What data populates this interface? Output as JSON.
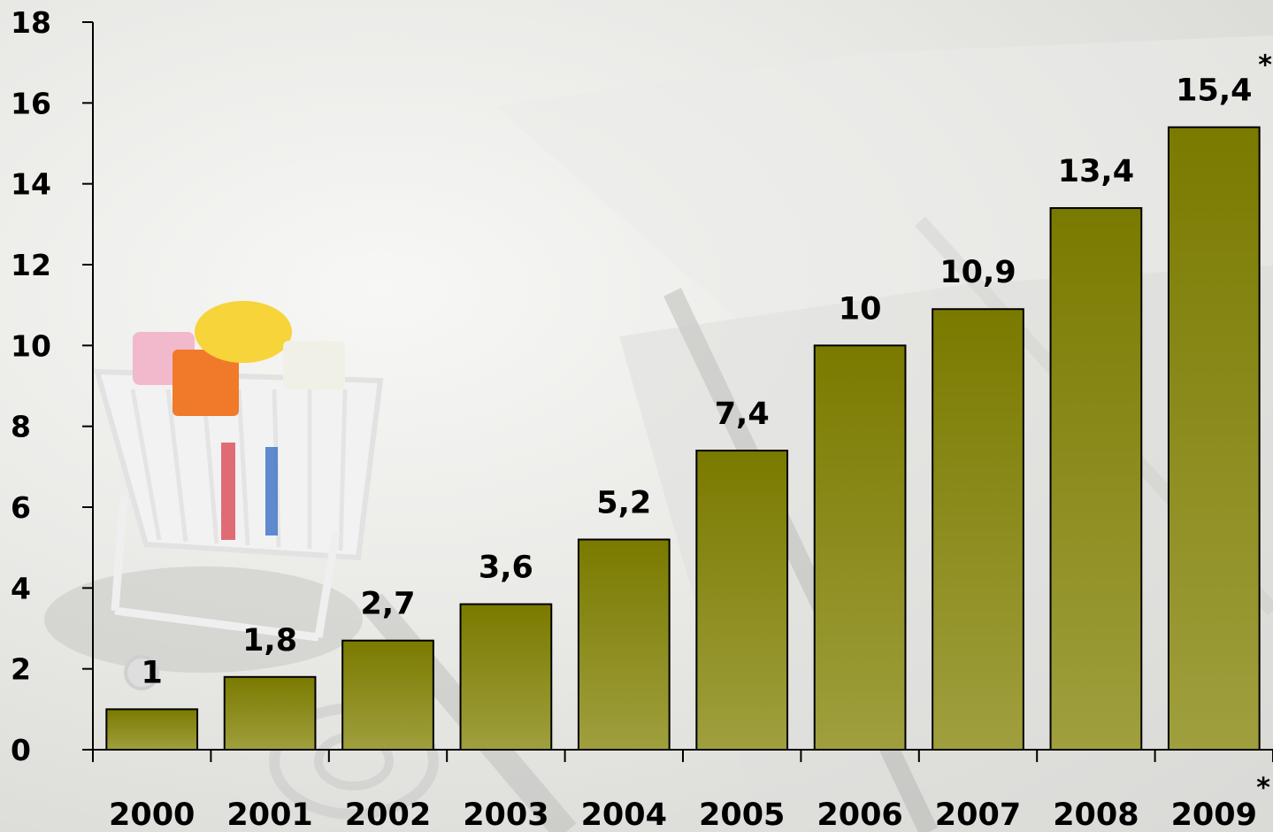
{
  "chart_data": {
    "type": "bar",
    "categories": [
      "2000",
      "2001",
      "2002",
      "2003",
      "2004",
      "2005",
      "2006",
      "2007",
      "2008",
      "2009"
    ],
    "category_markers": [
      "",
      "",
      "",
      "",
      "",
      "",
      "",
      "",
      "",
      "*"
    ],
    "values": [
      1,
      1.8,
      2.7,
      3.6,
      5.2,
      7.4,
      10,
      10.9,
      13.4,
      15.4
    ],
    "value_labels": [
      "1",
      "1,8",
      "2,7",
      "3,6",
      "5,2",
      "7,4",
      "10",
      "10,9",
      "13,4",
      "15,4"
    ],
    "value_markers": [
      "",
      "",
      "",
      "",
      "",
      "",
      "",
      "",
      "",
      "*"
    ],
    "ylim": [
      0,
      18
    ],
    "yticks": [
      0,
      2,
      4,
      6,
      8,
      10,
      12,
      14,
      16,
      18
    ],
    "ytick_labels": [
      "0",
      "2",
      "4",
      "6",
      "8",
      "10",
      "12",
      "14",
      "16",
      "18"
    ],
    "title": "",
    "xlabel": "",
    "ylabel": "",
    "grid": false,
    "legend": "none",
    "colors": {
      "bar_top": "#7a7a00",
      "bar_bottom": "#9f9f3e",
      "bar_stroke": "#000000",
      "axis": "#000000"
    }
  },
  "background": {
    "image": "shopping-cart-on-keyboard-photo"
  }
}
